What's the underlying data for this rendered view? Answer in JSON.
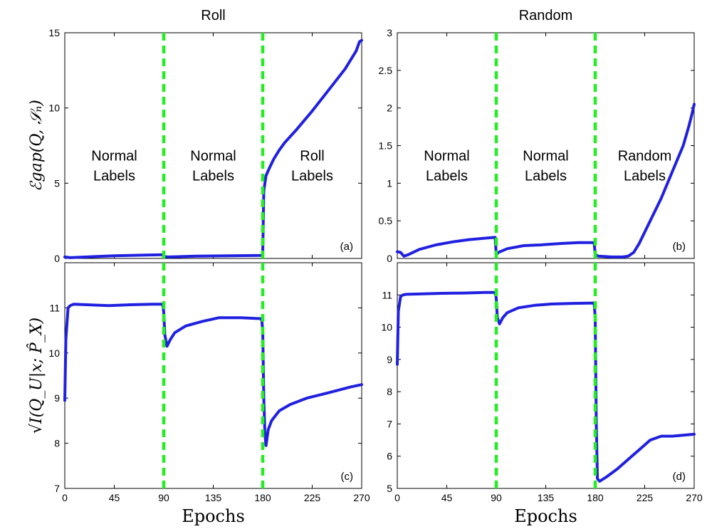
{
  "column_titles": [
    "Roll",
    "Random"
  ],
  "row_ylabels": [
    "ℰgap(Q, 𝒮ₙ)",
    "√I(Q_U|x; P̂_X)"
  ],
  "colors": {
    "series": "#2020e0",
    "boundary": "#22ee22"
  },
  "chart_data": [
    {
      "type": "line",
      "panel": "(a)",
      "column_title": "Roll",
      "xlabel": "",
      "ylabel": "ℰgap(Q, 𝒮ₙ)",
      "xlim": [
        0,
        270
      ],
      "ylim": [
        0,
        15
      ],
      "xticks": [
        0,
        45,
        90,
        135,
        180,
        225,
        270
      ],
      "yticks": [
        0,
        5,
        10,
        15
      ],
      "vlines": [
        90,
        180
      ],
      "regions": [
        {
          "x": 45,
          "y": 6.5,
          "lines": [
            "Normal",
            "Labels"
          ]
        },
        {
          "x": 135,
          "y": 6.5,
          "lines": [
            "Normal",
            "Labels"
          ]
        },
        {
          "x": 225,
          "y": 6.5,
          "lines": [
            "Roll",
            "Labels"
          ]
        }
      ],
      "series": [
        {
          "x": [
            0,
            5,
            20,
            45,
            70,
            89,
            90,
            95,
            120,
            150,
            179,
            180,
            181,
            183,
            186,
            190,
            195,
            200,
            210,
            225,
            240,
            255,
            265,
            268,
            270
          ],
          "y": [
            0.1,
            0.05,
            0.1,
            0.18,
            0.22,
            0.25,
            0.12,
            0.1,
            0.15,
            0.18,
            0.2,
            0.3,
            4.5,
            5.5,
            6.0,
            6.6,
            7.2,
            7.7,
            8.5,
            9.8,
            11.2,
            12.6,
            13.8,
            14.4,
            14.5
          ]
        }
      ]
    },
    {
      "type": "line",
      "panel": "(b)",
      "column_title": "Random",
      "xlabel": "",
      "ylabel": "",
      "xlim": [
        0,
        270
      ],
      "ylim": [
        0,
        3
      ],
      "xticks": [
        0,
        45,
        90,
        135,
        180,
        225,
        270
      ],
      "yticks": [
        0,
        0.5,
        1,
        1.5,
        2,
        2.5,
        3
      ],
      "vlines": [
        90,
        180
      ],
      "regions": [
        {
          "x": 45,
          "y": 1.3,
          "lines": [
            "Normal",
            "Labels"
          ]
        },
        {
          "x": 135,
          "y": 1.3,
          "lines": [
            "Normal",
            "Labels"
          ]
        },
        {
          "x": 225,
          "y": 1.3,
          "lines": [
            "Random",
            "Labels"
          ]
        }
      ],
      "series": [
        {
          "x": [
            0,
            3,
            6,
            10,
            20,
            35,
            50,
            65,
            80,
            89,
            90,
            92,
            100,
            115,
            130,
            150,
            165,
            179,
            180,
            183,
            195,
            205,
            210,
            215,
            220,
            230,
            240,
            250,
            260,
            265,
            268,
            270
          ],
          "y": [
            0.09,
            0.08,
            0.03,
            0.05,
            0.12,
            0.18,
            0.22,
            0.25,
            0.27,
            0.28,
            0.05,
            0.08,
            0.13,
            0.17,
            0.18,
            0.2,
            0.21,
            0.21,
            0.05,
            0.03,
            0.02,
            0.02,
            0.03,
            0.08,
            0.2,
            0.5,
            0.8,
            1.15,
            1.5,
            1.75,
            1.92,
            2.05
          ]
        }
      ]
    },
    {
      "type": "line",
      "panel": "(c)",
      "column_title": "Roll",
      "xlabel": "Epochs",
      "ylabel": "√I(Q_U|x; P̂_X)",
      "xlim": [
        0,
        270
      ],
      "ylim": [
        7,
        12
      ],
      "xticks": [
        0,
        45,
        90,
        135,
        180,
        225,
        270
      ],
      "yticks": [
        7,
        8,
        9,
        10,
        11
      ],
      "vlines": [
        90,
        180
      ],
      "regions": [],
      "series": [
        {
          "x": [
            0,
            1,
            3,
            5,
            8,
            20,
            40,
            60,
            80,
            89,
            90,
            91,
            93,
            96,
            100,
            110,
            125,
            140,
            160,
            179,
            180,
            181,
            182,
            183,
            185,
            188,
            195,
            205,
            220,
            240,
            260,
            270
          ],
          "y": [
            8.95,
            10.3,
            11.0,
            11.05,
            11.08,
            11.07,
            11.05,
            11.07,
            11.08,
            11.08,
            10.9,
            10.4,
            10.15,
            10.3,
            10.45,
            10.6,
            10.7,
            10.78,
            10.78,
            10.76,
            10.5,
            9.0,
            8.2,
            7.95,
            8.3,
            8.5,
            8.72,
            8.86,
            9.0,
            9.12,
            9.25,
            9.3
          ]
        }
      ]
    },
    {
      "type": "line",
      "panel": "(d)",
      "column_title": "Random",
      "xlabel": "Epochs",
      "ylabel": "",
      "xlim": [
        0,
        270
      ],
      "ylim": [
        5,
        12
      ],
      "xticks": [
        0,
        45,
        90,
        135,
        180,
        225,
        270
      ],
      "yticks": [
        5,
        6,
        7,
        8,
        9,
        10,
        11
      ],
      "vlines": [
        90,
        180
      ],
      "regions": [],
      "series": [
        {
          "x": [
            0,
            1,
            3,
            5,
            8,
            20,
            40,
            60,
            80,
            89,
            90,
            91,
            93,
            96,
            100,
            110,
            125,
            140,
            160,
            179,
            180,
            181,
            182,
            184,
            190,
            200,
            210,
            220,
            230,
            240,
            250,
            260,
            270
          ],
          "y": [
            8.85,
            10.5,
            10.95,
            11.0,
            11.02,
            11.03,
            11.05,
            11.06,
            11.08,
            11.08,
            10.9,
            10.3,
            10.1,
            10.3,
            10.45,
            10.6,
            10.68,
            10.72,
            10.74,
            10.75,
            10.3,
            7.0,
            5.3,
            5.22,
            5.35,
            5.6,
            5.9,
            6.2,
            6.5,
            6.62,
            6.62,
            6.65,
            6.68
          ]
        }
      ]
    }
  ]
}
